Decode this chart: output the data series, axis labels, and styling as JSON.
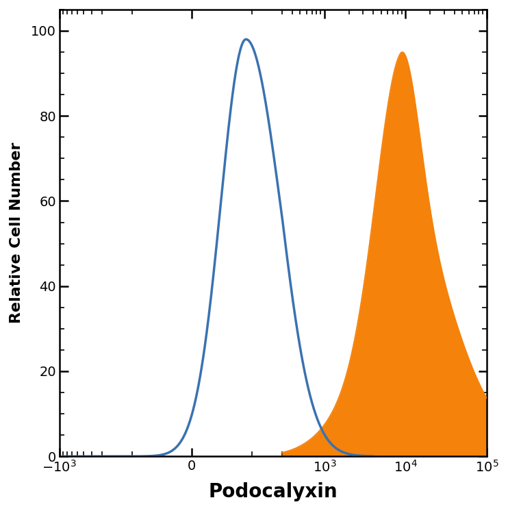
{
  "title": "",
  "xlabel": "Podocalyxin",
  "ylabel": "Relative Cell Number",
  "ylim": [
    0,
    105
  ],
  "yticks": [
    0,
    20,
    40,
    60,
    80,
    100
  ],
  "isotype_color": "#3a72b0",
  "isotype_linewidth": 2.5,
  "antibody_color": "#f5820a",
  "background_color": "#ffffff",
  "xlabel_fontsize": 20,
  "ylabel_fontsize": 16,
  "tick_fontsize": 14,
  "linthresh": 300,
  "linscale": 1.0
}
